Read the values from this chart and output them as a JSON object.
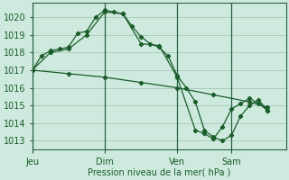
{
  "bg_color": "#ceeade",
  "grid_color": "#9bbfad",
  "line_color": "#1a5c2a",
  "xlabel": "Pression niveau de la mer( hPa )",
  "ylim": [
    1012.5,
    1020.8
  ],
  "yticks": [
    1013,
    1014,
    1015,
    1016,
    1017,
    1018,
    1019,
    1020
  ],
  "xtick_labels": [
    "Jeu",
    "Dim",
    "Ven",
    "Sam"
  ],
  "xtick_positions": [
    0,
    8,
    16,
    22
  ],
  "vline_positions": [
    0,
    8,
    16,
    22
  ],
  "xlim": [
    0,
    28
  ],
  "series1": {
    "x": [
      0,
      1,
      2,
      3,
      4,
      5,
      6,
      7,
      8,
      9,
      10,
      11,
      12,
      13,
      14,
      15,
      16,
      17,
      18,
      19,
      20,
      21,
      22,
      23,
      24,
      25,
      26
    ],
    "y": [
      1017.0,
      1017.8,
      1018.1,
      1018.2,
      1018.3,
      1019.1,
      1019.2,
      1020.0,
      1020.4,
      1020.3,
      1020.2,
      1019.5,
      1018.9,
      1018.5,
      1018.3,
      1017.8,
      1016.7,
      1016.0,
      1015.2,
      1013.6,
      1013.2,
      1013.0,
      1013.3,
      1014.4,
      1015.0,
      1015.3,
      1014.7
    ]
  },
  "series2": {
    "x": [
      0,
      2,
      4,
      6,
      8,
      10,
      12,
      14,
      16,
      18,
      19,
      20,
      21,
      22,
      23,
      24,
      25,
      26
    ],
    "y": [
      1017.0,
      1018.0,
      1018.2,
      1019.0,
      1020.3,
      1020.2,
      1018.5,
      1018.4,
      1016.6,
      1013.6,
      1013.4,
      1013.1,
      1013.8,
      1014.8,
      1015.1,
      1015.4,
      1015.1,
      1014.7
    ]
  },
  "series3": {
    "x": [
      0,
      4,
      8,
      12,
      16,
      20,
      24,
      26
    ],
    "y": [
      1017.0,
      1016.8,
      1016.6,
      1016.3,
      1016.0,
      1015.6,
      1015.2,
      1014.9
    ]
  }
}
